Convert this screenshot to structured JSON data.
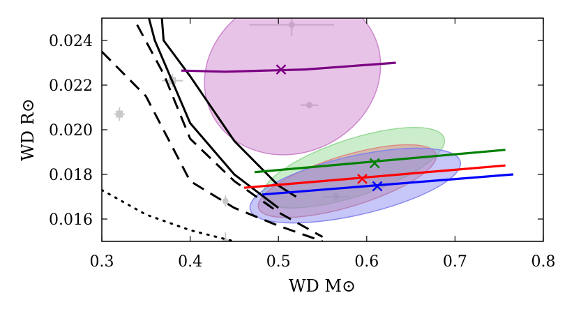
{
  "chart_data": {
    "type": "scatter",
    "xlabel": "WD M⊙",
    "ylabel": "WD R⊙",
    "xlim": [
      0.3,
      0.8
    ],
    "ylim": [
      0.015,
      0.025
    ],
    "xticks": [
      "0.3",
      "0.4",
      "0.5",
      "0.6",
      "0.7",
      "0.8"
    ],
    "yticks": [
      "0.016",
      "0.018",
      "0.020",
      "0.022",
      "0.024"
    ],
    "mass_radius_curves": [
      {
        "name": "solid-1",
        "style": "solid",
        "points": [
          [
            0.35,
            0.0255
          ],
          [
            0.36,
            0.024
          ],
          [
            0.4,
            0.0203
          ],
          [
            0.45,
            0.018
          ],
          [
            0.5,
            0.0165
          ]
        ]
      },
      {
        "name": "solid-2",
        "style": "solid",
        "points": [
          [
            0.365,
            0.0265
          ],
          [
            0.37,
            0.024
          ],
          [
            0.4,
            0.0224
          ],
          [
            0.45,
            0.0195
          ],
          [
            0.5,
            0.0175
          ],
          [
            0.52,
            0.017
          ]
        ]
      },
      {
        "name": "dashed-1",
        "style": "dashed",
        "points": [
          [
            0.3,
            0.0235
          ],
          [
            0.35,
            0.0215
          ],
          [
            0.4,
            0.0177
          ],
          [
            0.45,
            0.0165
          ],
          [
            0.5,
            0.0157
          ],
          [
            0.55,
            0.015
          ]
        ]
      },
      {
        "name": "dashed-2",
        "style": "dashed",
        "points": [
          [
            0.34,
            0.0247
          ],
          [
            0.37,
            0.0225
          ],
          [
            0.4,
            0.0196
          ],
          [
            0.45,
            0.0177
          ],
          [
            0.5,
            0.0163
          ],
          [
            0.55,
            0.0152
          ]
        ]
      },
      {
        "name": "dotted-1",
        "style": "dotted",
        "points": [
          [
            0.3,
            0.0173
          ],
          [
            0.35,
            0.0162
          ],
          [
            0.4,
            0.0155
          ],
          [
            0.45,
            0.015
          ]
        ]
      }
    ],
    "background_points": [
      {
        "marker": "square",
        "x": 0.32,
        "y": 0.0207,
        "xerr": 0.006,
        "yerr": 0.0003
      },
      {
        "marker": "square",
        "x": 0.38,
        "y": 0.0222,
        "xerr": 0.012,
        "yerr": 0.0003
      },
      {
        "marker": "circle",
        "x": 0.515,
        "y": 0.0247,
        "xerr": 0.048,
        "yerr": 0.0005
      },
      {
        "marker": "circle",
        "x": 0.535,
        "y": 0.0211,
        "xerr": 0.01,
        "yerr": 0.00015
      },
      {
        "marker": "circle",
        "x": 0.44,
        "y": 0.0168,
        "xerr": 0.0,
        "yerr": 0.00025
      },
      {
        "marker": "circle",
        "x": 0.44,
        "y": 0.015,
        "xerr": 0.0,
        "yerr": 0.0004
      },
      {
        "marker": "circle",
        "x": 0.565,
        "y": 0.017,
        "xerr": 0.015,
        "yerr": 0.0002
      }
    ],
    "systems": [
      {
        "name": "purple",
        "color": "#7b0083",
        "fill": "#c97cc9",
        "best_fit": [
          0.503,
          0.0227
        ],
        "ellipse": {
          "cx": 0.516,
          "cy": 0.0225,
          "a": 0.102,
          "b": 0.0016,
          "angle_data": [
            0.2,
            0.0038
          ]
        },
        "line": [
          [
            0.39,
            0.02265
          ],
          [
            0.44,
            0.0226
          ],
          [
            0.53,
            0.0227
          ],
          [
            0.633,
            0.023
          ]
        ]
      },
      {
        "name": "green",
        "color": "#008000",
        "fill": "#8fd68f",
        "best_fit": [
          0.609,
          0.0185
        ],
        "ellipse": {
          "cx": 0.585,
          "cy": 0.0183,
          "a": 0.108,
          "b": 0.00058,
          "angle_data": [
            0.2,
            0.0026
          ]
        },
        "line": [
          [
            0.473,
            0.0181
          ],
          [
            0.757,
            0.0191
          ]
        ]
      },
      {
        "name": "red",
        "color": "#ff0000",
        "fill": "#e08080",
        "best_fit": [
          0.595,
          0.0178
        ],
        "ellipse": {
          "cx": 0.578,
          "cy": 0.0177,
          "a": 0.105,
          "b": 0.00052,
          "angle_data": [
            0.2,
            0.0024
          ]
        },
        "line": [
          [
            0.461,
            0.0174
          ],
          [
            0.757,
            0.0184
          ]
        ]
      },
      {
        "name": "blue",
        "color": "#0000ff",
        "fill": "#8080f0",
        "best_fit": [
          0.612,
          0.01747
        ],
        "ellipse": {
          "cx": 0.587,
          "cy": 0.0175,
          "a": 0.122,
          "b": 0.0006,
          "angle_data": [
            0.2,
            0.0018
          ]
        },
        "line": [
          [
            0.482,
            0.0171
          ],
          [
            0.766,
            0.018
          ]
        ]
      }
    ]
  }
}
